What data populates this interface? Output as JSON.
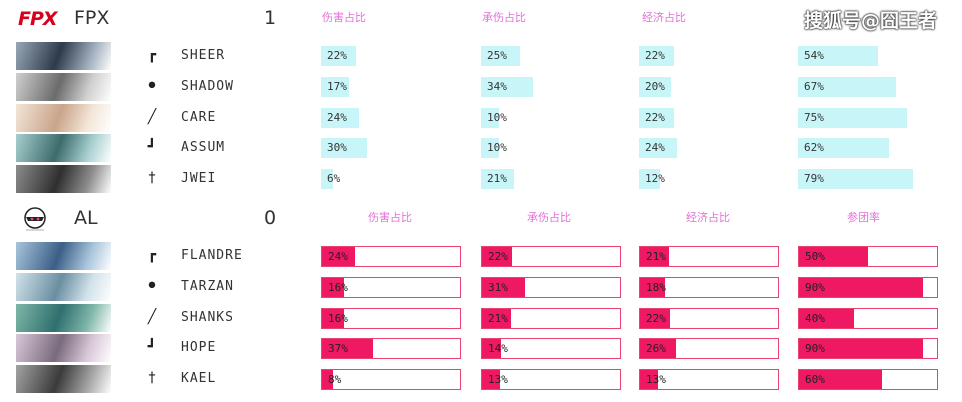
{
  "watermark": "搜狐号@囧王者",
  "columns": [
    "伤害占比",
    "承伤占比",
    "经济占比",
    "参团率"
  ],
  "teams": [
    {
      "name": "FPX",
      "logo_text": "FPX",
      "score": "1",
      "players": [
        {
          "role_icon": "top-lane-icon",
          "name": "SHEER",
          "stats": [
            "22%",
            "25%",
            "22%",
            "54%"
          ],
          "fills": [
            0.22,
            0.25,
            0.22,
            0.54
          ]
        },
        {
          "role_icon": "jungle-icon",
          "name": "SHADOW",
          "stats": [
            "17%",
            "34%",
            "20%",
            "67%"
          ],
          "fills": [
            0.17,
            0.34,
            0.2,
            0.67
          ]
        },
        {
          "role_icon": "mid-lane-icon",
          "name": "CARE",
          "stats": [
            "24%",
            "10%",
            "22%",
            "75%"
          ],
          "fills": [
            0.24,
            0.1,
            0.22,
            0.75
          ]
        },
        {
          "role_icon": "bottom-lane-icon",
          "name": "ASSUM",
          "stats": [
            "30%",
            "10%",
            "24%",
            "62%"
          ],
          "fills": [
            0.3,
            0.1,
            0.24,
            0.62
          ]
        },
        {
          "role_icon": "support-icon",
          "name": "JWEI",
          "stats": [
            "6%",
            "21%",
            "12%",
            "79%"
          ],
          "fills": [
            0.06,
            0.21,
            0.12,
            0.79
          ]
        }
      ]
    },
    {
      "name": "AL",
      "logo_text": "",
      "score": "0",
      "players": [
        {
          "role_icon": "top-lane-icon",
          "name": "FLANDRE",
          "stats": [
            "24%",
            "22%",
            "21%",
            "50%"
          ],
          "fills": [
            0.24,
            0.22,
            0.21,
            0.5
          ]
        },
        {
          "role_icon": "jungle-icon",
          "name": "TARZAN",
          "stats": [
            "16%",
            "31%",
            "18%",
            "90%"
          ],
          "fills": [
            0.16,
            0.31,
            0.18,
            0.9
          ]
        },
        {
          "role_icon": "mid-lane-icon",
          "name": "SHANKS",
          "stats": [
            "16%",
            "21%",
            "22%",
            "40%"
          ],
          "fills": [
            0.16,
            0.21,
            0.22,
            0.4
          ]
        },
        {
          "role_icon": "bottom-lane-icon",
          "name": "HOPE",
          "stats": [
            "37%",
            "14%",
            "26%",
            "90%"
          ],
          "fills": [
            0.37,
            0.14,
            0.26,
            0.9
          ]
        },
        {
          "role_icon": "support-icon",
          "name": "KAEL",
          "stats": [
            "8%",
            "13%",
            "13%",
            "60%"
          ],
          "fills": [
            0.08,
            0.13,
            0.13,
            0.6
          ]
        }
      ]
    }
  ],
  "colors": {
    "fpx_bar": "#c8f6f8",
    "al_bar": "#ee1863",
    "al_border": "#e9436f",
    "header_pink": "#e271d8",
    "fpx_red": "#d8001d"
  }
}
